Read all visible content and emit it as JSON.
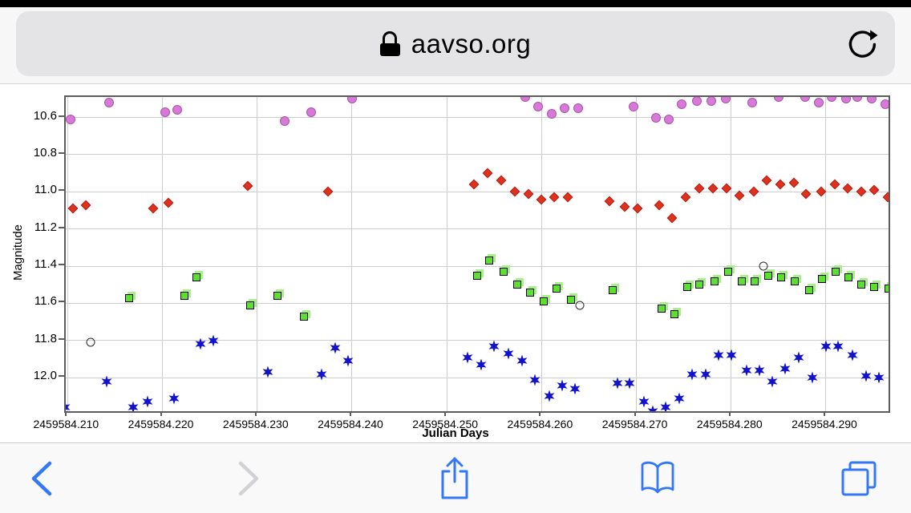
{
  "browser": {
    "url": "aavso.org",
    "status_bar_color": "#000000",
    "accent_color": "#3478F6",
    "disabled_color": "#D2D2D6",
    "url_bar": {
      "lock_icon": "lock-icon",
      "reload_icon": "reload-icon"
    },
    "toolbar": {
      "items": [
        {
          "icon": "back-icon",
          "enabled": true
        },
        {
          "icon": "forward-icon",
          "enabled": false
        },
        {
          "icon": "share-icon",
          "enabled": true
        },
        {
          "icon": "bookmarks-icon",
          "enabled": true
        },
        {
          "icon": "tabs-icon",
          "enabled": true
        }
      ]
    }
  },
  "chart_data": {
    "type": "scatter",
    "title": "",
    "xlabel": "Julian Days",
    "ylabel": "Magnitude",
    "grid": true,
    "y_axis_inverted": true,
    "xlim": [
      2459584.2098,
      2459584.2966
    ],
    "ylim": [
      10.49,
      12.18
    ],
    "x_ticks": [
      "2459584.210",
      "2459584.220",
      "2459584.230",
      "2459584.240",
      "2459584.250",
      "2459584.260",
      "2459584.270",
      "2459584.280",
      "2459584.290"
    ],
    "y_ticks": [
      "10.6",
      "10.8",
      "11.0",
      "11.2",
      "11.4",
      "11.6",
      "11.8",
      "12.0"
    ],
    "series": [
      {
        "name": "violet-circles",
        "marker": "circle",
        "color": "#D878D8",
        "edge": "#A855A8",
        "points": [
          [
            2459584.2103,
            10.61
          ],
          [
            2459584.2144,
            10.52
          ],
          [
            2459584.2203,
            10.57
          ],
          [
            2459584.2216,
            10.56
          ],
          [
            2459584.2329,
            10.62
          ],
          [
            2459584.2357,
            10.57
          ],
          [
            2459584.24,
            10.5
          ],
          [
            2459584.2583,
            10.49
          ],
          [
            2459584.2596,
            10.54
          ],
          [
            2459584.2611,
            10.58
          ],
          [
            2459584.2624,
            10.55
          ],
          [
            2459584.2639,
            10.55
          ],
          [
            2459584.2697,
            10.54
          ],
          [
            2459584.2721,
            10.6
          ],
          [
            2459584.2734,
            10.61
          ],
          [
            2459584.2748,
            10.53
          ],
          [
            2459584.2764,
            10.51
          ],
          [
            2459584.2779,
            10.51
          ],
          [
            2459584.2794,
            10.5
          ],
          [
            2459584.2822,
            10.52
          ],
          [
            2459584.285,
            10.49
          ],
          [
            2459584.2878,
            10.49
          ],
          [
            2459584.2892,
            10.52
          ],
          [
            2459584.2906,
            10.49
          ],
          [
            2459584.2921,
            10.5
          ],
          [
            2459584.2933,
            10.49
          ],
          [
            2459584.2948,
            10.5
          ],
          [
            2459584.2963,
            10.53
          ]
        ]
      },
      {
        "name": "red-diamonds",
        "marker": "diamond",
        "color": "#E0301E",
        "edge": "#B02015",
        "points": [
          [
            2459584.2106,
            11.09
          ],
          [
            2459584.2119,
            11.07
          ],
          [
            2459584.219,
            11.09
          ],
          [
            2459584.2206,
            11.06
          ],
          [
            2459584.229,
            10.97
          ],
          [
            2459584.2375,
            11.0
          ],
          [
            2459584.2529,
            10.96
          ],
          [
            2459584.2543,
            10.9
          ],
          [
            2459584.2557,
            10.94
          ],
          [
            2459584.2572,
            11.0
          ],
          [
            2459584.2586,
            11.01
          ],
          [
            2459584.26,
            11.04
          ],
          [
            2459584.2613,
            11.03
          ],
          [
            2459584.2628,
            11.03
          ],
          [
            2459584.2672,
            11.05
          ],
          [
            2459584.2688,
            11.08
          ],
          [
            2459584.2701,
            11.09
          ],
          [
            2459584.2724,
            11.07
          ],
          [
            2459584.2738,
            11.14
          ],
          [
            2459584.2752,
            11.03
          ],
          [
            2459584.2766,
            10.98
          ],
          [
            2459584.2781,
            10.98
          ],
          [
            2459584.2795,
            10.98
          ],
          [
            2459584.2809,
            11.02
          ],
          [
            2459584.2824,
            11.0
          ],
          [
            2459584.2837,
            10.94
          ],
          [
            2459584.2852,
            10.96
          ],
          [
            2459584.2866,
            10.95
          ],
          [
            2459584.2879,
            11.01
          ],
          [
            2459584.2895,
            11.0
          ],
          [
            2459584.2909,
            10.96
          ],
          [
            2459584.2923,
            10.98
          ],
          [
            2459584.2937,
            11.0
          ],
          [
            2459584.2951,
            10.99
          ],
          [
            2459584.2965,
            11.03
          ]
        ]
      },
      {
        "name": "green-squares",
        "marker": "square",
        "color": "#5BE02F",
        "edge": "#000000",
        "ghost": "#A9F08C",
        "points": [
          [
            2459584.2165,
            11.57
          ],
          [
            2459584.2223,
            11.56
          ],
          [
            2459584.2236,
            11.46
          ],
          [
            2459584.2293,
            11.61
          ],
          [
            2459584.2321,
            11.56
          ],
          [
            2459584.2349,
            11.67
          ],
          [
            2459584.2532,
            11.45
          ],
          [
            2459584.2545,
            11.37
          ],
          [
            2459584.256,
            11.43
          ],
          [
            2459584.2574,
            11.5
          ],
          [
            2459584.2588,
            11.54
          ],
          [
            2459584.2602,
            11.59
          ],
          [
            2459584.2616,
            11.52
          ],
          [
            2459584.2631,
            11.58
          ],
          [
            2459584.2675,
            11.53
          ],
          [
            2459584.2727,
            11.63
          ],
          [
            2459584.274,
            11.66
          ],
          [
            2459584.2754,
            11.51
          ],
          [
            2459584.2766,
            11.5
          ],
          [
            2459584.2782,
            11.48
          ],
          [
            2459584.2797,
            11.43
          ],
          [
            2459584.2811,
            11.48
          ],
          [
            2459584.2825,
            11.48
          ],
          [
            2459584.2839,
            11.45
          ],
          [
            2459584.2853,
            11.46
          ],
          [
            2459584.2867,
            11.48
          ],
          [
            2459584.2882,
            11.53
          ],
          [
            2459584.2896,
            11.47
          ],
          [
            2459584.291,
            11.43
          ],
          [
            2459584.2924,
            11.46
          ],
          [
            2459584.2937,
            11.5
          ],
          [
            2459584.2951,
            11.51
          ],
          [
            2459584.2966,
            11.52
          ]
        ]
      },
      {
        "name": "blue-stars",
        "marker": "star6",
        "color": "#1212CC",
        "edge": "#1212CC",
        "points": [
          [
            2459584.2097,
            12.16
          ],
          [
            2459584.2141,
            12.02
          ],
          [
            2459584.2169,
            12.16
          ],
          [
            2459584.2184,
            12.13
          ],
          [
            2459584.2212,
            12.11
          ],
          [
            2459584.224,
            11.82
          ],
          [
            2459584.2254,
            11.8
          ],
          [
            2459584.2311,
            11.97
          ],
          [
            2459584.2368,
            11.98
          ],
          [
            2459584.2382,
            11.84
          ],
          [
            2459584.2396,
            11.91
          ],
          [
            2459584.2522,
            11.89
          ],
          [
            2459584.2536,
            11.93
          ],
          [
            2459584.255,
            11.83
          ],
          [
            2459584.2565,
            11.87
          ],
          [
            2459584.2579,
            11.91
          ],
          [
            2459584.2593,
            12.01
          ],
          [
            2459584.2608,
            12.1
          ],
          [
            2459584.2622,
            12.04
          ],
          [
            2459584.2635,
            12.06
          ],
          [
            2459584.268,
            12.03
          ],
          [
            2459584.2693,
            12.03
          ],
          [
            2459584.2708,
            12.13
          ],
          [
            2459584.2717,
            12.18
          ],
          [
            2459584.2731,
            12.16
          ],
          [
            2459584.2745,
            12.11
          ],
          [
            2459584.2759,
            11.98
          ],
          [
            2459584.2773,
            11.98
          ],
          [
            2459584.2787,
            11.88
          ],
          [
            2459584.28,
            11.88
          ],
          [
            2459584.2816,
            11.96
          ],
          [
            2459584.283,
            11.96
          ],
          [
            2459584.2843,
            12.02
          ],
          [
            2459584.2857,
            11.95
          ],
          [
            2459584.2871,
            11.89
          ],
          [
            2459584.2886,
            12.0
          ],
          [
            2459584.29,
            11.83
          ],
          [
            2459584.2913,
            11.83
          ],
          [
            2459584.2928,
            11.88
          ],
          [
            2459584.2942,
            11.99
          ],
          [
            2459584.2956,
            12.0
          ]
        ]
      },
      {
        "name": "open-circles",
        "marker": "open-circle",
        "color": "transparent",
        "edge": "#2A2A2A",
        "points": [
          [
            2459584.2124,
            11.81
          ],
          [
            2459584.264,
            11.61
          ],
          [
            2459584.2834,
            11.4
          ]
        ]
      }
    ]
  }
}
